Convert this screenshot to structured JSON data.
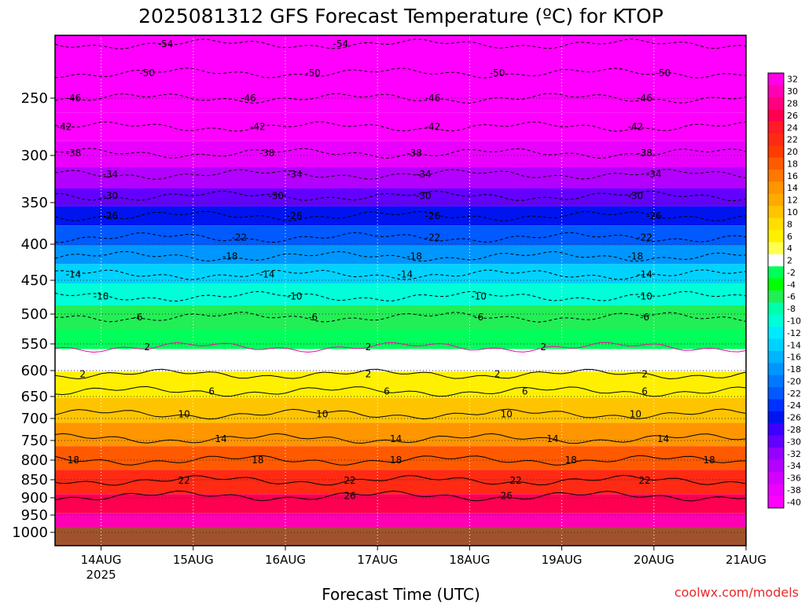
{
  "chart_data": {
    "type": "heatmap",
    "title": "2025081312 GFS Forecast Temperature (ºC) for KTOP",
    "xlabel": "Forecast Time (UTC)",
    "ylabel": "",
    "credit": "coolwx.com/models",
    "x_ticks": [
      {
        "label": "14AUG",
        "sublabel": "2025",
        "t": 1
      },
      {
        "label": "15AUG",
        "sublabel": "",
        "t": 2
      },
      {
        "label": "16AUG",
        "sublabel": "",
        "t": 3
      },
      {
        "label": "17AUG",
        "sublabel": "",
        "t": 4
      },
      {
        "label": "18AUG",
        "sublabel": "",
        "t": 5
      },
      {
        "label": "19AUG",
        "sublabel": "",
        "t": 6
      },
      {
        "label": "20AUG",
        "sublabel": "",
        "t": 7
      },
      {
        "label": "21AUG",
        "sublabel": "",
        "t": 8
      }
    ],
    "xlim": [
      0.5,
      8.0
    ],
    "y_ticks": [
      250,
      300,
      350,
      400,
      450,
      500,
      550,
      600,
      650,
      700,
      750,
      800,
      850,
      900,
      950,
      1000
    ],
    "ylim_hpa": [
      200,
      1000
    ],
    "colorbar": {
      "levels": [
        32,
        30,
        28,
        26,
        24,
        22,
        20,
        18,
        16,
        14,
        12,
        10,
        8,
        6,
        4,
        2,
        -2,
        -4,
        -6,
        -8,
        -10,
        -12,
        -14,
        -16,
        -18,
        -20,
        -22,
        -24,
        -26,
        -28,
        -30,
        -32,
        -34,
        -36,
        -38,
        -40
      ],
      "colors": [
        "#ff00e6",
        "#ff00b4",
        "#ff0080",
        "#ff0050",
        "#ff1a28",
        "#ff2a14",
        "#ff3c00",
        "#ff5a00",
        "#ff7800",
        "#ff9600",
        "#ffaa00",
        "#ffc400",
        "#ffde00",
        "#fff000",
        "#ffff50",
        "#ffffff",
        "#00ff5a",
        "#00ff00",
        "#22ee55",
        "#00ffaa",
        "#00ffd8",
        "#00eaff",
        "#00d2ff",
        "#00b4ff",
        "#0096ff",
        "#0078ff",
        "#005aff",
        "#0032ff",
        "#0014f0",
        "#3c00ff",
        "#6400ff",
        "#9600ff",
        "#b400ff",
        "#d200ff",
        "#ea00ff",
        "#ff00ff"
      ]
    },
    "temperature_profile": [
      {
        "p": 200,
        "t": -56
      },
      {
        "p": 230,
        "t": -50
      },
      {
        "p": 250,
        "t": -46
      },
      {
        "p": 275,
        "t": -42
      },
      {
        "p": 300,
        "t": -38
      },
      {
        "p": 325,
        "t": -34
      },
      {
        "p": 345,
        "t": -30
      },
      {
        "p": 365,
        "t": -26
      },
      {
        "p": 390,
        "t": -22
      },
      {
        "p": 415,
        "t": -18
      },
      {
        "p": 440,
        "t": -14
      },
      {
        "p": 470,
        "t": -10
      },
      {
        "p": 505,
        "t": -6
      },
      {
        "p": 545,
        "t": -2
      },
      {
        "p": 575,
        "t": 2
      },
      {
        "p": 630,
        "t": 6
      },
      {
        "p": 680,
        "t": 10
      },
      {
        "p": 740,
        "t": 14
      },
      {
        "p": 790,
        "t": 18
      },
      {
        "p": 860,
        "t": 22
      },
      {
        "p": 920,
        "t": 26
      },
      {
        "p": 970,
        "t": 30
      }
    ],
    "contours": [
      {
        "value": -54,
        "p": 207,
        "labels": [
          {
            "t": 1.7,
            "text": "-54"
          },
          {
            "t": 3.6,
            "text": "-54"
          }
        ]
      },
      {
        "value": -50,
        "p": 230,
        "labels": [
          {
            "t": 1.5,
            "text": "-50"
          },
          {
            "t": 3.3,
            "text": "-50"
          },
          {
            "t": 5.3,
            "text": "-50"
          },
          {
            "t": 7.1,
            "text": "-50"
          }
        ]
      },
      {
        "value": -46,
        "p": 250,
        "labels": [
          {
            "t": 0.7,
            "text": "-46"
          },
          {
            "t": 2.6,
            "text": "-46"
          },
          {
            "t": 4.6,
            "text": "-46"
          },
          {
            "t": 6.9,
            "text": "-46"
          }
        ]
      },
      {
        "value": -42,
        "p": 275,
        "labels": [
          {
            "t": 0.6,
            "text": "-42"
          },
          {
            "t": 2.7,
            "text": "-42"
          },
          {
            "t": 4.6,
            "text": "-42"
          },
          {
            "t": 6.8,
            "text": "-42"
          }
        ]
      },
      {
        "value": -38,
        "p": 298,
        "labels": [
          {
            "t": 0.7,
            "text": "-38"
          },
          {
            "t": 2.8,
            "text": "-38"
          },
          {
            "t": 4.4,
            "text": "-38"
          },
          {
            "t": 6.9,
            "text": "-38"
          }
        ]
      },
      {
        "value": -34,
        "p": 320,
        "labels": [
          {
            "t": 1.1,
            "text": "-34"
          },
          {
            "t": 3.1,
            "text": "-34"
          },
          {
            "t": 4.5,
            "text": "-34"
          },
          {
            "t": 7.0,
            "text": "-34"
          }
        ]
      },
      {
        "value": -30,
        "p": 343,
        "labels": [
          {
            "t": 1.1,
            "text": "-30"
          },
          {
            "t": 2.9,
            "text": "-30"
          },
          {
            "t": 4.5,
            "text": "-30"
          },
          {
            "t": 6.8,
            "text": "-30"
          }
        ]
      },
      {
        "value": -26,
        "p": 366,
        "labels": [
          {
            "t": 1.1,
            "text": "-26"
          },
          {
            "t": 3.1,
            "text": "-26"
          },
          {
            "t": 4.6,
            "text": "-26"
          },
          {
            "t": 7.0,
            "text": "-26"
          }
        ]
      },
      {
        "value": -22,
        "p": 392,
        "labels": [
          {
            "t": 2.5,
            "text": "-22"
          },
          {
            "t": 4.6,
            "text": "-22"
          },
          {
            "t": 6.9,
            "text": "-22"
          }
        ]
      },
      {
        "value": -18,
        "p": 417,
        "labels": [
          {
            "t": 2.4,
            "text": "-18"
          },
          {
            "t": 4.4,
            "text": "-18"
          },
          {
            "t": 6.8,
            "text": "-18"
          }
        ]
      },
      {
        "value": -14,
        "p": 442,
        "labels": [
          {
            "t": 0.7,
            "text": "-14"
          },
          {
            "t": 2.8,
            "text": "-14"
          },
          {
            "t": 4.3,
            "text": "-14"
          },
          {
            "t": 6.9,
            "text": "-14"
          }
        ]
      },
      {
        "value": -10,
        "p": 474,
        "labels": [
          {
            "t": 1.0,
            "text": "-10"
          },
          {
            "t": 3.1,
            "text": "-10"
          },
          {
            "t": 5.1,
            "text": "-10"
          },
          {
            "t": 6.9,
            "text": "-10"
          }
        ]
      },
      {
        "value": -6,
        "p": 505,
        "labels": [
          {
            "t": 1.4,
            "text": "-6"
          },
          {
            "t": 3.3,
            "text": "-6"
          },
          {
            "t": 5.1,
            "text": "-6"
          },
          {
            "t": 6.9,
            "text": "-6"
          }
        ]
      },
      {
        "value": 2,
        "p": 556,
        "labels": [
          {
            "t": 1.5,
            "text": "2"
          },
          {
            "t": 3.9,
            "text": "2"
          },
          {
            "t": 5.8,
            "text": "2"
          }
        ]
      },
      {
        "value": 2,
        "p": 607,
        "labels": [
          {
            "t": 0.8,
            "text": "2"
          },
          {
            "t": 3.9,
            "text": "2"
          },
          {
            "t": 5.3,
            "text": "2"
          },
          {
            "t": 6.9,
            "text": "2"
          }
        ]
      },
      {
        "value": 6,
        "p": 640,
        "labels": [
          {
            "t": 2.2,
            "text": "6"
          },
          {
            "t": 4.1,
            "text": "6"
          },
          {
            "t": 5.6,
            "text": "6"
          },
          {
            "t": 6.9,
            "text": "6"
          }
        ]
      },
      {
        "value": 10,
        "p": 690,
        "labels": [
          {
            "t": 1.9,
            "text": "10"
          },
          {
            "t": 3.4,
            "text": "10"
          },
          {
            "t": 5.4,
            "text": "10"
          },
          {
            "t": 6.8,
            "text": "10"
          }
        ]
      },
      {
        "value": 14,
        "p": 746,
        "labels": [
          {
            "t": 2.3,
            "text": "14"
          },
          {
            "t": 4.2,
            "text": "14"
          },
          {
            "t": 5.9,
            "text": "14"
          },
          {
            "t": 7.1,
            "text": "14"
          }
        ]
      },
      {
        "value": 18,
        "p": 800,
        "labels": [
          {
            "t": 0.7,
            "text": "18"
          },
          {
            "t": 2.7,
            "text": "18"
          },
          {
            "t": 4.2,
            "text": "18"
          },
          {
            "t": 6.1,
            "text": "18"
          },
          {
            "t": 7.6,
            "text": "18"
          }
        ]
      },
      {
        "value": 22,
        "p": 852,
        "labels": [
          {
            "t": 1.9,
            "text": "22"
          },
          {
            "t": 3.7,
            "text": "22"
          },
          {
            "t": 5.5,
            "text": "22"
          },
          {
            "t": 6.9,
            "text": "22"
          }
        ]
      },
      {
        "value": 26,
        "p": 895,
        "labels": [
          {
            "t": 3.7,
            "text": "26"
          },
          {
            "t": 5.4,
            "text": "26"
          }
        ]
      }
    ],
    "ground_color": "#a0522d",
    "grid": "dotted",
    "legend": "right"
  }
}
